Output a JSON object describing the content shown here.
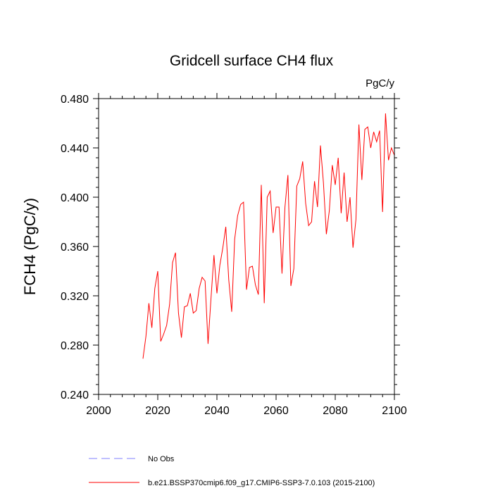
{
  "chart_data": {
    "type": "line",
    "title": "Gridcell surface CH4 flux",
    "units": "PgC/y",
    "ylabel": "FCH4  (PgC/y)",
    "xlabel": "",
    "xlim": [
      2000,
      2100
    ],
    "ylim": [
      0.24,
      0.48
    ],
    "xticks": [
      2000,
      2020,
      2040,
      2060,
      2080,
      2100
    ],
    "xtick_labels": [
      "2000",
      "2020",
      "2040",
      "2060",
      "2080",
      "2100"
    ],
    "yticks": [
      0.24,
      0.28,
      0.32,
      0.36,
      0.4,
      0.44,
      0.48
    ],
    "ytick_labels": [
      "0.240",
      "0.280",
      "0.320",
      "0.360",
      "0.400",
      "0.440",
      "0.480"
    ],
    "grid": false,
    "legend_position": "bottom",
    "legend": [
      {
        "name": "No Obs",
        "color": "#8080ff",
        "style": "dashed"
      },
      {
        "name": "b.e21.BSSP370cmip6.f09_g17.CMIP6-SSP3-7.0.103 (2015-2100)",
        "color": "#ff0000",
        "style": "solid"
      }
    ],
    "series": [
      {
        "name": "b.e21.BSSP370cmip6.f09_g17.CMIP6-SSP3-7.0.103 (2015-2100)",
        "color": "#ff0000",
        "x": [
          2015,
          2016,
          2017,
          2018,
          2019,
          2020,
          2021,
          2022,
          2023,
          2024,
          2025,
          2026,
          2027,
          2028,
          2029,
          2030,
          2031,
          2032,
          2033,
          2034,
          2035,
          2036,
          2037,
          2038,
          2039,
          2040,
          2041,
          2042,
          2043,
          2044,
          2045,
          2046,
          2047,
          2048,
          2049,
          2050,
          2051,
          2052,
          2053,
          2054,
          2055,
          2056,
          2057,
          2058,
          2059,
          2060,
          2061,
          2062,
          2063,
          2064,
          2065,
          2066,
          2067,
          2068,
          2069,
          2070,
          2071,
          2072,
          2073,
          2074,
          2075,
          2076,
          2077,
          2078,
          2079,
          2080,
          2081,
          2082,
          2083,
          2084,
          2085,
          2086,
          2087,
          2088,
          2089,
          2090,
          2091,
          2092,
          2093,
          2094,
          2095,
          2096,
          2097,
          2098,
          2099,
          2100
        ],
        "values": [
          0.269,
          0.287,
          0.314,
          0.294,
          0.326,
          0.34,
          0.283,
          0.289,
          0.296,
          0.313,
          0.347,
          0.355,
          0.306,
          0.286,
          0.311,
          0.312,
          0.322,
          0.306,
          0.308,
          0.326,
          0.335,
          0.332,
          0.281,
          0.318,
          0.353,
          0.322,
          0.345,
          0.359,
          0.376,
          0.333,
          0.307,
          0.366,
          0.385,
          0.394,
          0.396,
          0.325,
          0.343,
          0.344,
          0.329,
          0.321,
          0.41,
          0.314,
          0.4,
          0.405,
          0.371,
          0.392,
          0.392,
          0.338,
          0.392,
          0.418,
          0.328,
          0.342,
          0.409,
          0.415,
          0.429,
          0.395,
          0.377,
          0.38,
          0.413,
          0.392,
          0.442,
          0.412,
          0.37,
          0.389,
          0.426,
          0.41,
          0.432,
          0.387,
          0.42,
          0.38,
          0.4,
          0.359,
          0.382,
          0.459,
          0.414,
          0.455,
          0.457,
          0.44,
          0.453,
          0.445,
          0.454,
          0.388,
          0.468,
          0.43,
          0.44,
          0.434
        ]
      }
    ]
  }
}
